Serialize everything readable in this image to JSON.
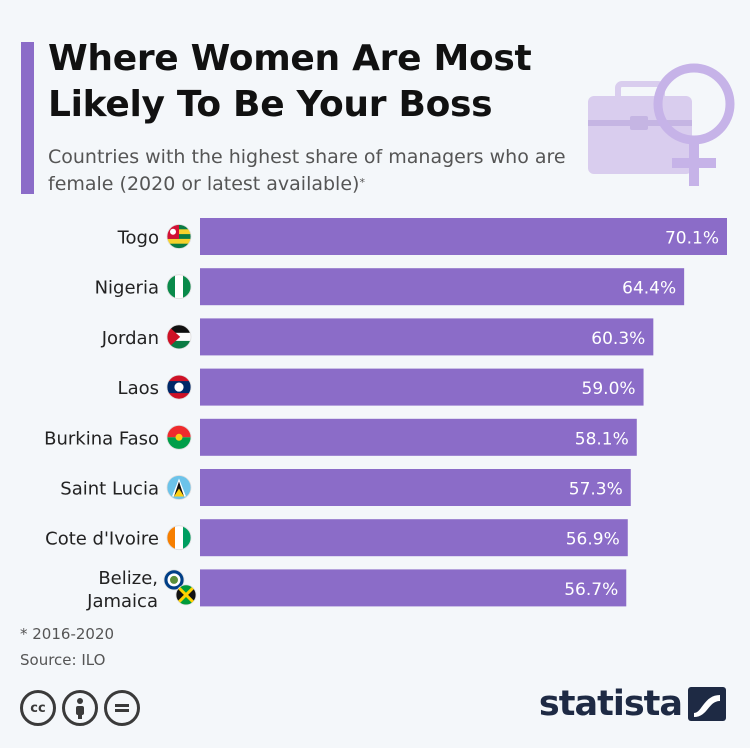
{
  "header": {
    "title": "Where Women Are Most Likely To Be Your Boss",
    "subtitle": "Countries with the highest share of managers who are female (2020 or latest available)",
    "subtitle_mark": "*"
  },
  "chart_data": {
    "type": "bar",
    "orientation": "horizontal",
    "title": "Where Women Are Most Likely To Be Your Boss",
    "xlabel": "",
    "ylabel": "",
    "xlim": [
      0,
      70.1
    ],
    "grid": false,
    "categories": [
      "Togo",
      "Nigeria",
      "Jordan",
      "Laos",
      "Burkina Faso",
      "Saint Lucia",
      "Cote d'Ivoire",
      "Belize, Jamaica"
    ],
    "values": [
      70.1,
      64.4,
      60.3,
      59.0,
      58.1,
      57.3,
      56.9,
      56.7
    ],
    "value_labels": [
      "70.1%",
      "64.4%",
      "60.3%",
      "59.0%",
      "58.1%",
      "57.3%",
      "56.9%",
      "56.7%"
    ],
    "flags": [
      "togo",
      "nigeria",
      "jordan",
      "laos",
      "burkina-faso",
      "saint-lucia",
      "cote-divoire",
      "belize-jamaica"
    ],
    "bar_color": "#8b6cc8"
  },
  "footer": {
    "note": "* 2016-2020",
    "source": "Source: ILO",
    "brand": "statista",
    "license_icons": [
      "cc-icon",
      "attribution-icon",
      "no-derivatives-icon"
    ]
  },
  "colors": {
    "accent": "#8b6cc8",
    "title": "#111111",
    "text": "#555555",
    "brand": "#1e2a44"
  }
}
